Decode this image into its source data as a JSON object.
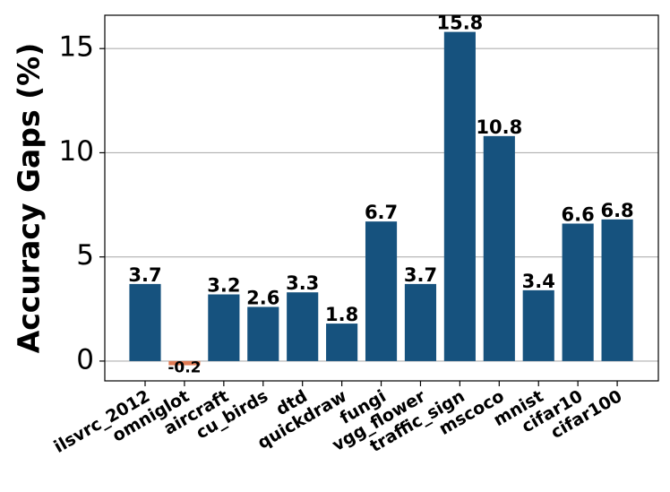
{
  "chart_data": {
    "type": "bar",
    "ylabel": "Accuracy Gaps (%)",
    "categories": [
      "ilsvrc_2012",
      "omniglot",
      "aircraft",
      "cu_birds",
      "dtd",
      "quickdraw",
      "fungi",
      "vgg_flower",
      "traffic_sign",
      "mscoco",
      "mnist",
      "cifar10",
      "cifar100"
    ],
    "values": [
      3.7,
      -0.2,
      3.2,
      2.6,
      3.3,
      1.8,
      6.7,
      3.7,
      15.8,
      10.8,
      3.4,
      6.6,
      6.8
    ],
    "colors": [
      "#16527e",
      "#e07b54",
      "#16527e",
      "#16527e",
      "#16527e",
      "#16527e",
      "#16527e",
      "#16527e",
      "#16527e",
      "#16527e",
      "#16527e",
      "#16527e",
      "#16527e"
    ],
    "ylim": [
      -0.95,
      16.6
    ],
    "yticks": [
      0,
      5,
      10,
      15
    ],
    "grid": true
  }
}
